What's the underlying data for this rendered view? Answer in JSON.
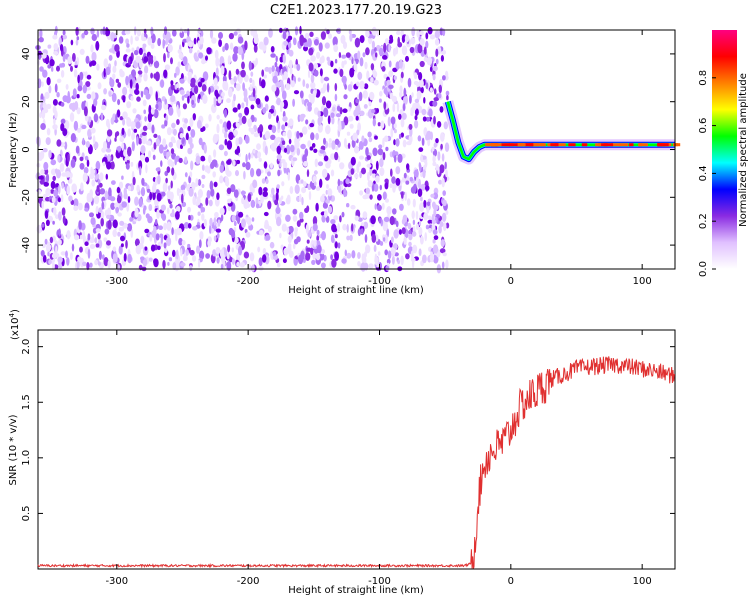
{
  "figure": {
    "title": "C2E1.2023.177.20.19.G23"
  },
  "chart_data": [
    {
      "type": "heatmap",
      "xlabel": "Height of straight line (km)",
      "ylabel": "Frequency (Hz)",
      "xlim": [
        -360,
        125
      ],
      "ylim": [
        -50,
        50
      ],
      "xticks": [
        -300,
        -200,
        -100,
        0,
        100
      ],
      "yticks": [
        -40,
        -20,
        0,
        20,
        40
      ],
      "noise_region_x": [
        -360,
        -48
      ],
      "signal_track": {
        "x": [
          -48,
          -44,
          -40,
          -36,
          -32,
          -28,
          -24,
          -20,
          -10,
          0,
          10,
          30,
          60,
          90,
          125
        ],
        "freq": [
          20,
          12,
          3,
          -3,
          -4,
          -1,
          1,
          2,
          2,
          2,
          2,
          2,
          2,
          2,
          2
        ]
      },
      "colorbar": {
        "label": "Normalized spectral amplitude",
        "ticks": [
          "0.0",
          "0.2",
          "0.4",
          "0.6",
          "0.8"
        ],
        "range": [
          0,
          1
        ],
        "colors": [
          "#ffffff",
          "#e0c0ff",
          "#8a2be2",
          "#0000ff",
          "#00ffff",
          "#00ff00",
          "#ffff00",
          "#ff8000",
          "#ff0000",
          "#ff0080"
        ]
      }
    },
    {
      "type": "line",
      "xlabel": "Height of straight line (km)",
      "ylabel": "SNR (10 * v/v)",
      "y_scale_note": "(x10",
      "y_scale_exp": "4",
      "y_scale_close": ")",
      "xlim": [
        -360,
        125
      ],
      "ylim": [
        0,
        2.15
      ],
      "xticks": [
        -300,
        -200,
        -100,
        0,
        100
      ],
      "yticks": [
        "0.5",
        "1.0",
        "1.5",
        "2.0"
      ],
      "series": [
        {
          "color": "#e03030",
          "x": [
            -360,
            -300,
            -250,
            -200,
            -150,
            -100,
            -50,
            -35,
            -30,
            -28,
            -25,
            -22,
            -20,
            -15,
            -10,
            -5,
            0,
            5,
            10,
            20,
            30,
            40,
            50,
            60,
            70,
            80,
            90,
            100,
            110,
            120,
            125
          ],
          "y": [
            0.03,
            0.03,
            0.03,
            0.03,
            0.03,
            0.03,
            0.03,
            0.03,
            0.05,
            0.15,
            0.6,
            0.85,
            0.95,
            1.05,
            1.1,
            1.15,
            1.25,
            1.4,
            1.5,
            1.6,
            1.7,
            1.75,
            1.8,
            1.82,
            1.83,
            1.84,
            1.82,
            1.8,
            1.78,
            1.75,
            1.73
          ]
        }
      ]
    }
  ]
}
